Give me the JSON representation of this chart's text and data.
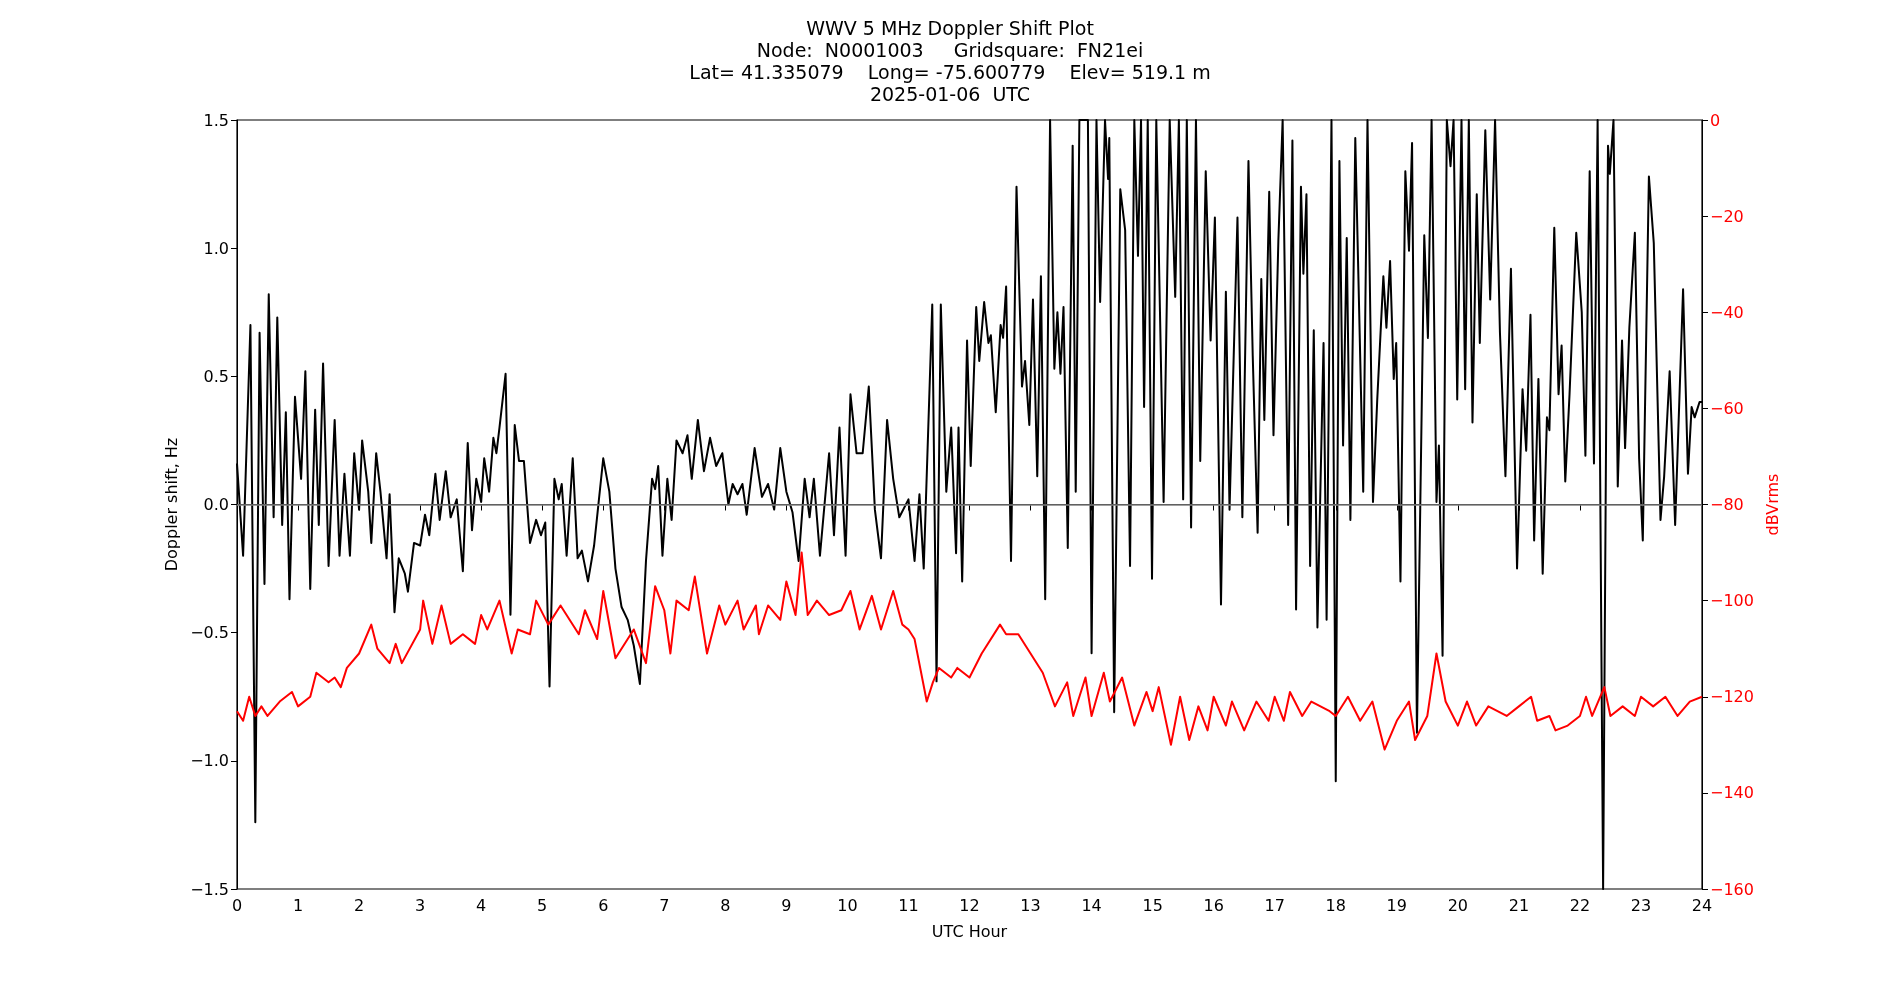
{
  "chart_data": {
    "type": "line",
    "title": "WWV 5 MHz Doppler Shift Plot",
    "subtitle": "Node:  N0001003     Gridsquare:  FN21ei\nLat= 41.335079    Long= -75.600779    Elev= 519.1 m\n2025-01-06  UTC",
    "xlabel": "UTC Hour",
    "ylabel": "Doppler shift, Hz",
    "y2label": "dBVrms",
    "marker": "none",
    "xlim": [
      0,
      24
    ],
    "xticks": [
      0,
      1,
      2,
      3,
      4,
      5,
      6,
      7,
      8,
      9,
      10,
      11,
      12,
      13,
      14,
      15,
      16,
      17,
      18,
      19,
      20,
      21,
      22,
      23,
      24
    ],
    "ylim": [
      -1.5,
      1.5
    ],
    "yticks": [
      {
        "value": -1.5,
        "label": "−1.5"
      },
      {
        "value": -1,
        "label": "−1.0"
      },
      {
        "value": -0.5,
        "label": "−0.5"
      },
      {
        "value": 0,
        "label": "0.0"
      },
      {
        "value": 0.5,
        "label": "0.5"
      },
      {
        "value": 1,
        "label": "1.0"
      },
      {
        "value": 1.5,
        "label": "1.5"
      }
    ],
    "y2lim": [
      -160,
      0
    ],
    "y2ticks": [
      {
        "value": -160,
        "label": "−160"
      },
      {
        "value": -140,
        "label": "−140"
      },
      {
        "value": -120,
        "label": "−120"
      },
      {
        "value": -100,
        "label": "−100"
      },
      {
        "value": -80,
        "label": "−80"
      },
      {
        "value": -60,
        "label": "−60"
      },
      {
        "value": -40,
        "label": "−40"
      },
      {
        "value": -20,
        "label": "−20"
      },
      0
    ],
    "ref_lines": [
      {
        "axis": "y",
        "value": 0,
        "color": "#808080"
      }
    ],
    "series": [
      {
        "color": "#000000",
        "x": [
          0,
          0.1,
          0.22,
          0.3,
          0.37,
          0.45,
          0.52,
          0.6,
          0.66,
          0.74,
          0.8,
          0.86,
          0.95,
          1.05,
          1.12,
          1.2,
          1.28,
          1.34,
          1.41,
          1.5,
          1.6,
          1.68,
          1.76,
          1.85,
          1.92,
          2.0,
          2.05,
          2.15,
          2.2,
          2.28,
          2.35,
          2.45,
          2.5,
          2.58,
          2.65,
          2.75,
          2.8,
          2.9,
          3.0,
          3.08,
          3.15,
          3.25,
          3.32,
          3.42,
          3.5,
          3.6,
          3.7,
          3.78,
          3.85,
          3.92,
          4.0,
          4.05,
          4.13,
          4.2,
          4.25,
          4.3,
          4.4,
          4.48,
          4.55,
          4.62,
          4.7,
          4.8,
          4.9,
          4.98,
          5.05,
          5.12,
          5.2,
          5.27,
          5.32,
          5.4,
          5.5,
          5.58,
          5.65,
          5.75,
          5.85,
          6.0,
          6.1,
          6.2,
          6.3,
          6.4,
          6.5,
          6.6,
          6.7,
          6.8,
          6.85,
          6.9,
          6.97,
          7.05,
          7.12,
          7.2,
          7.3,
          7.38,
          7.45,
          7.55,
          7.65,
          7.75,
          7.85,
          7.95,
          8.05,
          8.12,
          8.2,
          8.28,
          8.35,
          8.48,
          8.6,
          8.7,
          8.8,
          8.9,
          9.0,
          9.1,
          9.2,
          9.3,
          9.38,
          9.45,
          9.55,
          9.7,
          9.78,
          9.87,
          9.97,
          10.05,
          10.15,
          10.25,
          10.35,
          10.45,
          10.55,
          10.65,
          10.75,
          10.85,
          11.0,
          11.1,
          11.18,
          11.25,
          11.39,
          11.46,
          11.53,
          11.62,
          11.7,
          11.78,
          11.82,
          11.88,
          11.96,
          12.02,
          12.11,
          12.16,
          12.24,
          12.31,
          12.35,
          12.43,
          12.51,
          12.55,
          12.6,
          12.68,
          12.77,
          12.86,
          12.91,
          12.98,
          13.04,
          13.11,
          13.17,
          13.24,
          13.32,
          13.39,
          13.44,
          13.49,
          13.54,
          13.61,
          13.69,
          13.74,
          13.8,
          13.94,
          14.0,
          14.08,
          14.14,
          14.22,
          14.27,
          14.29,
          14.37,
          14.47,
          14.55,
          14.63,
          14.7,
          14.76,
          14.81,
          14.86,
          14.92,
          14.99,
          15.06,
          15.18,
          15.28,
          15.37,
          15.43,
          15.5,
          15.56,
          15.63,
          15.71,
          15.78,
          15.87,
          15.95,
          16.02,
          16.12,
          16.2,
          16.26,
          16.39,
          16.47,
          16.57,
          16.64,
          16.72,
          16.78,
          16.83,
          16.91,
          16.98,
          17.06,
          17.13,
          17.22,
          17.29,
          17.35,
          17.43,
          17.47,
          17.52,
          17.58,
          17.64,
          17.7,
          17.8,
          17.85,
          17.93,
          18.0,
          18.06,
          18.12,
          18.18,
          18.24,
          18.32,
          18.45,
          18.52,
          18.61,
          18.68,
          18.78,
          18.83,
          18.89,
          18.95,
          18.99,
          19.06,
          19.14,
          19.2,
          19.25,
          19.33,
          19.45,
          19.51,
          19.57,
          19.65,
          19.69,
          19.75,
          19.82,
          19.88,
          19.93,
          19.99,
          20.06,
          20.12,
          20.18,
          20.24,
          20.31,
          20.36,
          20.45,
          20.53,
          20.61,
          20.69,
          20.78,
          20.87,
          20.97,
          21.06,
          21.12,
          21.19,
          21.25,
          21.32,
          21.39,
          21.46,
          21.5,
          21.58,
          21.65,
          21.7,
          21.76,
          21.83,
          21.94,
          22.03,
          22.09,
          22.16,
          22.23,
          22.29,
          22.38,
          22.46,
          22.49,
          22.55,
          22.62,
          22.69,
          22.74,
          22.81,
          22.9,
          22.97,
          23.03,
          23.13,
          23.21,
          23.32,
          23.38,
          23.47,
          23.56,
          23.69,
          23.77,
          23.83,
          23.88,
          23.96,
          24.0
        ],
        "values": [
          0.16,
          -0.2,
          0.7,
          -1.24,
          0.67,
          -0.31,
          0.82,
          -0.05,
          0.73,
          -0.08,
          0.36,
          -0.37,
          0.42,
          0.1,
          0.52,
          -0.33,
          0.37,
          -0.08,
          0.55,
          -0.24,
          0.33,
          -0.2,
          0.12,
          -0.2,
          0.2,
          -0.02,
          0.25,
          0.05,
          -0.15,
          0.2,
          0.05,
          -0.21,
          0.04,
          -0.42,
          -0.21,
          -0.27,
          -0.34,
          -0.15,
          -0.16,
          -0.04,
          -0.12,
          0.12,
          -0.06,
          0.13,
          -0.05,
          0.02,
          -0.26,
          0.24,
          -0.1,
          0.1,
          0.01,
          0.18,
          0.05,
          0.26,
          0.2,
          0.3,
          0.51,
          -0.43,
          0.31,
          0.17,
          0.17,
          -0.15,
          -0.06,
          -0.12,
          -0.07,
          -0.71,
          0.1,
          0.02,
          0.08,
          -0.2,
          0.18,
          -0.21,
          -0.18,
          -0.3,
          -0.16,
          0.18,
          0.05,
          -0.25,
          -0.4,
          -0.45,
          -0.55,
          -0.7,
          -0.22,
          0.1,
          0.06,
          0.15,
          -0.2,
          0.1,
          -0.06,
          0.25,
          0.2,
          0.27,
          0.1,
          0.33,
          0.13,
          0.26,
          0.15,
          0.2,
          0.0,
          0.08,
          0.04,
          0.08,
          -0.04,
          0.22,
          0.03,
          0.08,
          -0.02,
          0.22,
          0.05,
          -0.03,
          -0.22,
          0.1,
          -0.05,
          0.1,
          -0.2,
          0.2,
          -0.12,
          0.3,
          -0.2,
          0.43,
          0.2,
          0.2,
          0.46,
          -0.02,
          -0.21,
          0.33,
          0.1,
          -0.05,
          0.02,
          -0.22,
          0.04,
          -0.25,
          0.78,
          -0.69,
          0.78,
          0.05,
          0.3,
          -0.19,
          0.3,
          -0.3,
          0.64,
          0.15,
          0.77,
          0.56,
          0.79,
          0.63,
          0.66,
          0.36,
          0.7,
          0.65,
          0.85,
          -0.22,
          1.24,
          0.46,
          0.56,
          0.31,
          0.8,
          0.11,
          0.89,
          -0.37,
          1.5,
          0.53,
          0.75,
          0.51,
          0.77,
          -0.17,
          1.4,
          0.05,
          1.5,
          1.5,
          -0.58,
          1.5,
          0.79,
          1.5,
          1.27,
          1.43,
          -0.81,
          1.23,
          1.07,
          -0.24,
          1.5,
          0.97,
          1.5,
          0.38,
          1.5,
          -0.29,
          1.5,
          0.01,
          1.5,
          0.81,
          1.5,
          0.02,
          1.5,
          -0.09,
          1.5,
          0.17,
          1.3,
          0.64,
          1.12,
          -0.39,
          0.83,
          -0.02,
          1.12,
          -0.05,
          1.34,
          0.58,
          -0.11,
          0.88,
          0.33,
          1.22,
          0.27,
          1.03,
          1.5,
          -0.08,
          1.42,
          -0.41,
          1.24,
          0.9,
          1.21,
          -0.24,
          0.68,
          -0.48,
          0.63,
          -0.45,
          1.5,
          -1.08,
          1.34,
          0.23,
          1.04,
          -0.06,
          1.43,
          0.05,
          1.5,
          0.01,
          0.41,
          0.89,
          0.69,
          0.95,
          0.49,
          0.63,
          -0.3,
          1.3,
          0.99,
          1.41,
          -0.89,
          1.05,
          0.65,
          1.5,
          0.01,
          0.23,
          -0.59,
          1.5,
          1.32,
          1.5,
          0.41,
          1.5,
          0.45,
          1.5,
          0.32,
          1.21,
          0.63,
          1.46,
          0.8,
          1.5,
          0.67,
          0.11,
          0.92,
          -0.25,
          0.45,
          0.21,
          0.74,
          -0.14,
          0.49,
          -0.27,
          0.34,
          0.29,
          1.08,
          0.43,
          0.62,
          0.09,
          0.43,
          1.06,
          0.75,
          0.19,
          1.3,
          0.16,
          1.5,
          -1.5,
          1.4,
          1.29,
          1.5,
          0.07,
          0.64,
          0.22,
          0.69,
          1.06,
          0.18,
          -0.14,
          1.28,
          1.02,
          -0.06,
          0.11,
          0.52,
          -0.08,
          0.84,
          0.12,
          0.38,
          0.34,
          0.4,
          0.4
        ]
      },
      {
        "color": "#ff0000",
        "axis": "y2",
        "x": [
          0,
          0.1,
          0.2,
          0.3,
          0.4,
          0.5,
          0.7,
          0.9,
          1.0,
          1.2,
          1.3,
          1.5,
          1.6,
          1.7,
          1.8,
          2.0,
          2.2,
          2.3,
          2.5,
          2.6,
          2.7,
          3.0,
          3.05,
          3.2,
          3.35,
          3.5,
          3.7,
          3.9,
          4.0,
          4.1,
          4.3,
          4.5,
          4.6,
          4.8,
          4.9,
          5.1,
          5.3,
          5.6,
          5.7,
          5.9,
          6.0,
          6.2,
          6.5,
          6.7,
          6.85,
          7.0,
          7.1,
          7.2,
          7.4,
          7.5,
          7.7,
          7.9,
          8.0,
          8.2,
          8.3,
          8.5,
          8.55,
          8.7,
          8.9,
          9.0,
          9.15,
          9.25,
          9.35,
          9.5,
          9.7,
          9.9,
          10.05,
          10.2,
          10.4,
          10.55,
          10.75,
          10.9,
          11.0,
          11.1,
          11.3,
          11.4,
          11.5,
          11.7,
          11.8,
          12.0,
          12.2,
          12.5,
          12.6,
          12.8,
          13.0,
          13.2,
          13.4,
          13.6,
          13.7,
          13.9,
          14.0,
          14.2,
          14.3,
          14.5,
          14.7,
          14.9,
          15.0,
          15.1,
          15.3,
          15.45,
          15.6,
          15.75,
          15.9,
          16.0,
          16.2,
          16.3,
          16.5,
          16.7,
          16.9,
          17.0,
          17.15,
          17.25,
          17.45,
          17.6,
          17.9,
          18.0,
          18.2,
          18.4,
          18.6,
          18.8,
          19.0,
          19.2,
          19.3,
          19.5,
          19.65,
          19.8,
          20.0,
          20.15,
          20.3,
          20.5,
          20.8,
          21.0,
          21.2,
          21.3,
          21.5,
          21.6,
          21.8,
          22.0,
          22.1,
          22.2,
          22.4,
          22.5,
          22.7,
          22.9,
          23.0,
          23.2,
          23.4,
          23.6,
          23.8,
          24.0
        ],
        "values": [
          -123,
          -125,
          -120,
          -124,
          -122,
          -124,
          -121,
          -119,
          -122,
          -120,
          -115,
          -117,
          -116,
          -118,
          -114,
          -111,
          -105,
          -110,
          -113,
          -109,
          -113,
          -106,
          -100,
          -109,
          -101,
          -109,
          -107,
          -109,
          -103,
          -106,
          -100,
          -111,
          -106,
          -107,
          -100,
          -105,
          -101,
          -107,
          -102,
          -108,
          -98,
          -112,
          -106,
          -113,
          -97,
          -102,
          -111,
          -100,
          -102,
          -95,
          -111,
          -101,
          -105,
          -100,
          -106,
          -101,
          -107,
          -101,
          -104,
          -96,
          -103,
          -90,
          -103,
          -100,
          -103,
          -102,
          -98,
          -106,
          -99,
          -106,
          -98,
          -105,
          -106,
          -108,
          -121,
          -117,
          -114,
          -116,
          -114,
          -116,
          -111,
          -105,
          -107,
          -107,
          -111,
          -115,
          -122,
          -117,
          -124,
          -116,
          -124,
          -115,
          -121,
          -116,
          -126,
          -119,
          -123,
          -118,
          -130,
          -120,
          -129,
          -122,
          -127,
          -120,
          -126,
          -121,
          -127,
          -121,
          -125,
          -120,
          -125,
          -119,
          -124,
          -121,
          -123,
          -124,
          -120,
          -125,
          -121,
          -131,
          -125,
          -121,
          -129,
          -124,
          -111,
          -121,
          -126,
          -121,
          -126,
          -122,
          -124,
          -122,
          -120,
          -125,
          -124,
          -127,
          -126,
          -124,
          -120,
          -124,
          -118,
          -124,
          -122,
          -124,
          -120,
          -122,
          -120,
          -124,
          -121,
          -120
        ]
      }
    ]
  }
}
